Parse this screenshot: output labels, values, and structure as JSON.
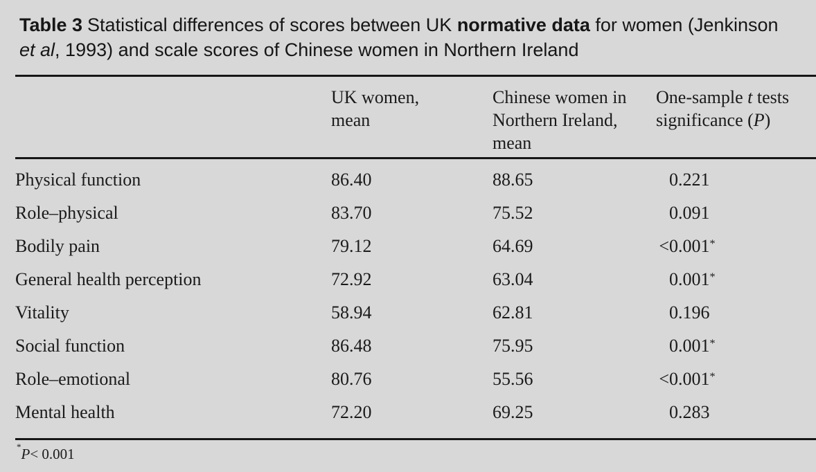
{
  "page": {
    "background_color": "#d8d8d8",
    "text_color": "#1a1a1a",
    "rule_color": "#161616"
  },
  "title": {
    "l1_bold": "Table 3",
    "l1_a": "Statistical differences of scores between UK ",
    "l1_b": "normative data",
    "l1_c": " for women (Jenkinson",
    "l2_italic": "et al",
    "l2_rest": ", 1993) and scale scores of Chinese women in Northern Ireland"
  },
  "table": {
    "columns": {
      "col2_header": "UK women,\nmean",
      "col3_header": "Chinese women in\nNorthern Ireland,\nmean",
      "col4_header": {
        "l1a": "One-sample ",
        "l1b": "t",
        "l1c": " tests",
        "l2a": "significance (",
        "l2b": "P",
        "l2c": ")"
      }
    },
    "rows": [
      {
        "label": "Physical function",
        "uk_mean": "86.40",
        "chinese_mean": "88.65",
        "p_prefix": "",
        "p_value": "0.221",
        "p_star": ""
      },
      {
        "label": "Role–physical",
        "uk_mean": "83.70",
        "chinese_mean": "75.52",
        "p_prefix": "",
        "p_value": "0.091",
        "p_star": ""
      },
      {
        "label": "Bodily pain",
        "uk_mean": "79.12",
        "chinese_mean": "64.69",
        "p_prefix": "<",
        "p_value": "0.001",
        "p_star": "*"
      },
      {
        "label": "General health perception",
        "uk_mean": "72.92",
        "chinese_mean": "63.04",
        "p_prefix": "",
        "p_value": "0.001",
        "p_star": "*"
      },
      {
        "label": "Vitality",
        "uk_mean": "58.94",
        "chinese_mean": "62.81",
        "p_prefix": "",
        "p_value": "0.196",
        "p_star": ""
      },
      {
        "label": "Social function",
        "uk_mean": "86.48",
        "chinese_mean": "75.95",
        "p_prefix": "",
        "p_value": "0.001",
        "p_star": "*"
      },
      {
        "label": "Role–emotional",
        "uk_mean": "80.76",
        "chinese_mean": "55.56",
        "p_prefix": "<",
        "p_value": "0.001",
        "p_star": "*"
      },
      {
        "label": "Mental health",
        "uk_mean": "72.20",
        "chinese_mean": "69.25",
        "p_prefix": "",
        "p_value": "0.283",
        "p_star": ""
      }
    ]
  },
  "footnote": {
    "star": "*",
    "p_italic": "P",
    "rest": "< 0.001"
  }
}
